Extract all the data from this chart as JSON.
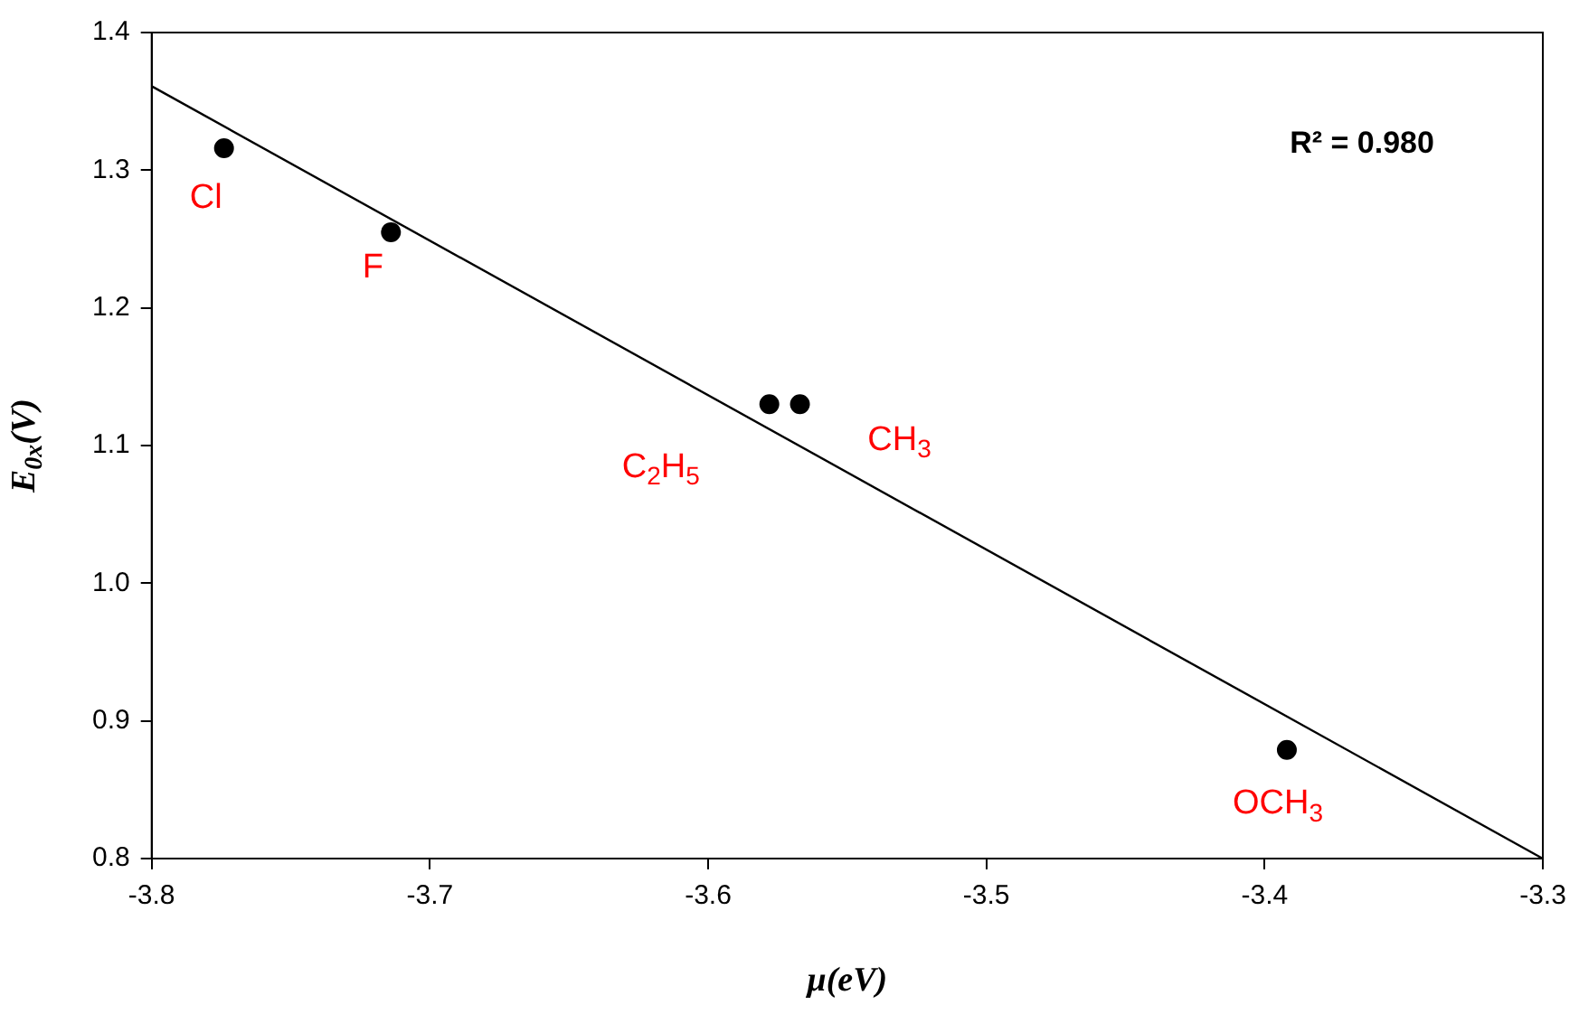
{
  "chart_data": {
    "type": "scatter",
    "xlabel": "μ(eV)",
    "ylabel": "E$_{0x}$(V)",
    "series": [
      {
        "marker": "circle",
        "color": "#000000",
        "x": [
          -3.774,
          -3.714,
          -3.578,
          -3.567,
          -3.392
        ],
        "values": [
          1.316,
          1.255,
          1.13,
          1.13,
          0.879
        ]
      },
      {
        "type": "line",
        "marker": "none",
        "color": "#000000",
        "x": [
          -3.8,
          -3.3
        ],
        "values": [
          1.361,
          0.8
        ]
      }
    ],
    "xlim": [
      -3.8,
      -3.3
    ],
    "xticks": [
      -3.8,
      -3.7,
      -3.6,
      -3.5,
      -3.4,
      -3.3
    ],
    "ylim": [
      0.8,
      1.4
    ],
    "yticks": [
      0.8,
      0.9,
      {
        "value": 1,
        "label": "1.0"
      },
      1.1,
      1.2,
      1.3,
      1.4
    ],
    "annotations": [
      "R² = 0.980",
      {
        "text": "Cl",
        "x": -3.774,
        "y": 1.316
      },
      {
        "text": "F",
        "x": -3.714,
        "y": 1.255
      },
      {
        "text": "CH$_{3}$",
        "x": -3.567,
        "y": 1.13
      },
      {
        "text": "C$_{2}$H$_{5}$",
        "x": -3.578,
        "y": 1.13
      },
      {
        "text": "OCH$_{3}$",
        "x": -3.392,
        "y": 0.879
      }
    ],
    "grid": false,
    "legend": false
  }
}
